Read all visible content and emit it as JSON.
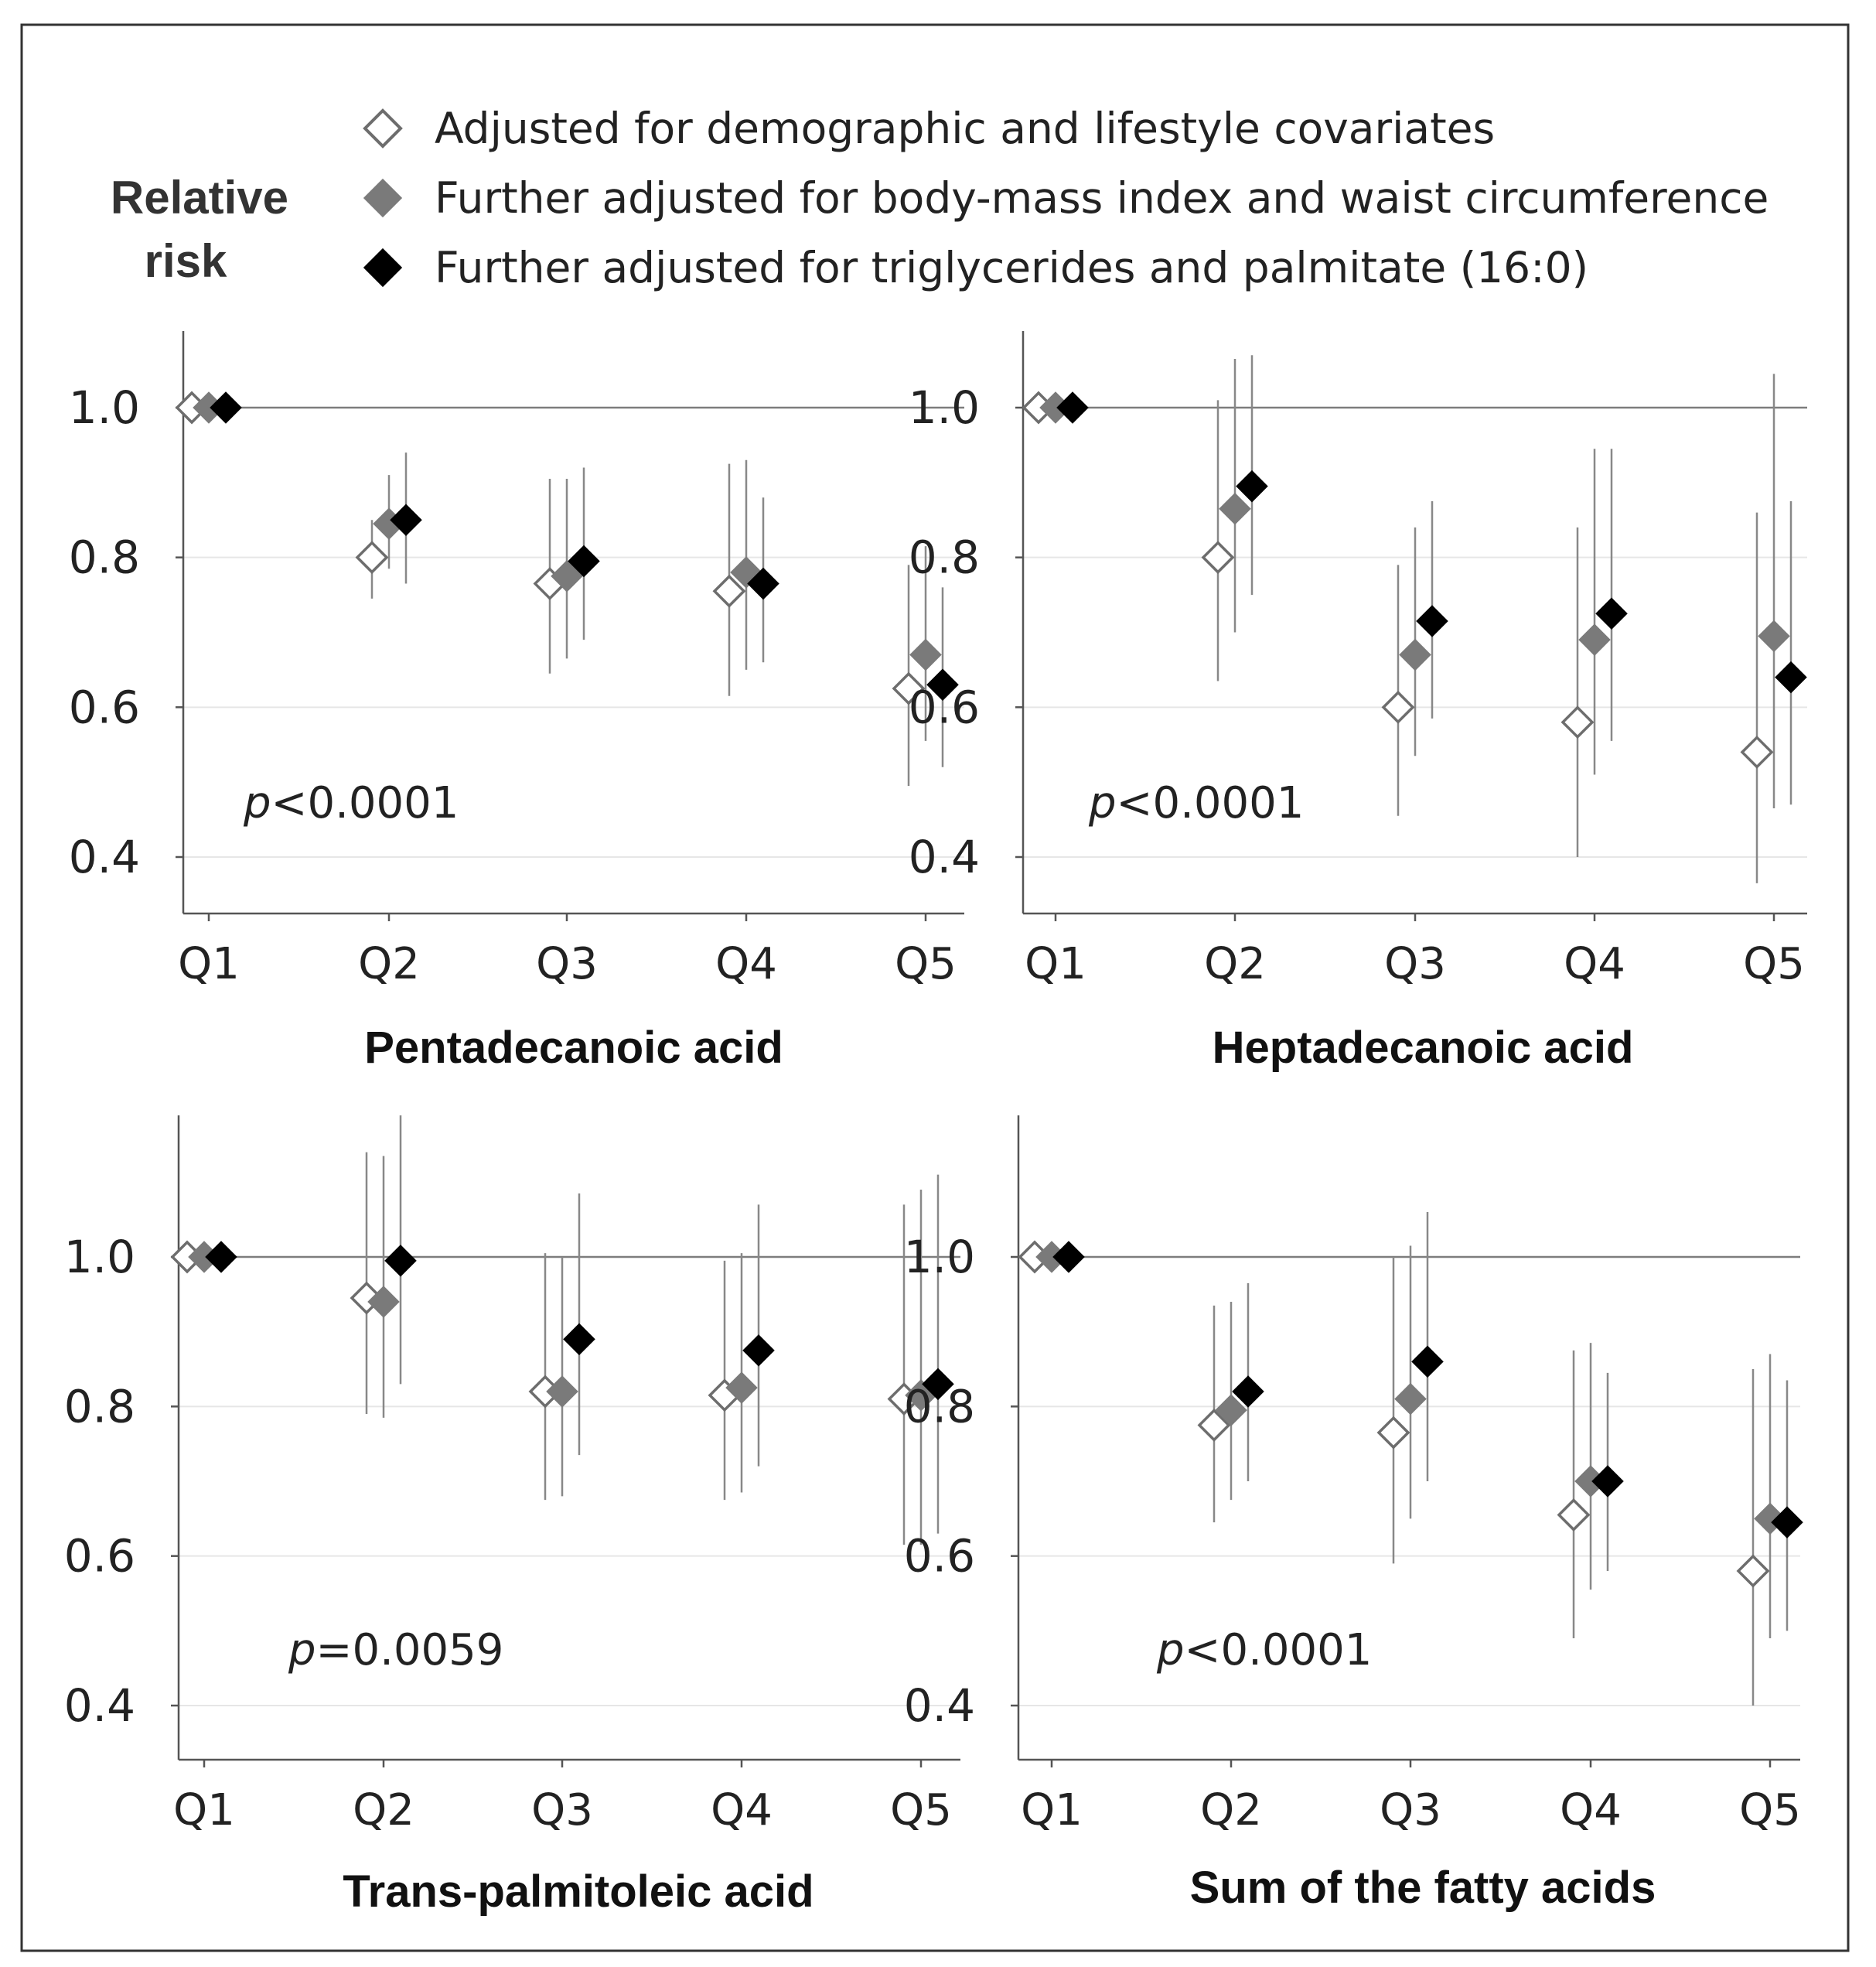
{
  "chart_data": {
    "type": "scatter",
    "ylabel": [
      "Relative",
      "risk"
    ],
    "legend": [
      {
        "name": "Adjusted for demographic and lifestyle covariates",
        "marker": "diamond-open",
        "color": "#ffffff",
        "stroke": "#6d6d6d"
      },
      {
        "name": "Further adjusted for body-mass index and waist circumference",
        "marker": "diamond-filled",
        "color": "#7a7a7a",
        "stroke": "#7a7a7a"
      },
      {
        "name": "Further adjusted for triglycerides and palmitate (16:0)",
        "marker": "diamond-filled",
        "color": "#000000",
        "stroke": "#000000"
      }
    ],
    "categories": [
      "Q1",
      "Q2",
      "Q3",
      "Q4",
      "Q5"
    ],
    "yticks": [
      "1.0",
      "0.8",
      "0.6",
      "0.4"
    ],
    "reference_line": 1.0,
    "panels": [
      {
        "title": "Pentadecanoic acid",
        "p_prefix": "p",
        "p_rest": "<0.0001",
        "series": [
          {
            "name": "Adjusted for demographic and lifestyle covariates",
            "values": [
              1.0,
              0.8,
              0.765,
              0.755,
              0.625
            ],
            "lower": [
              null,
              0.745,
              0.645,
              0.615,
              0.495
            ],
            "upper": [
              null,
              0.85,
              0.905,
              0.925,
              0.79
            ]
          },
          {
            "name": "Further adjusted for body-mass index and waist circumference",
            "values": [
              1.0,
              0.845,
              0.775,
              0.78,
              0.67
            ],
            "lower": [
              null,
              0.785,
              0.665,
              0.65,
              0.555
            ],
            "upper": [
              null,
              0.91,
              0.905,
              0.93,
              0.815
            ]
          },
          {
            "name": "Further adjusted for triglycerides and palmitate (16:0)",
            "values": [
              1.0,
              0.85,
              0.795,
              0.765,
              0.63
            ],
            "lower": [
              null,
              0.765,
              0.69,
              0.66,
              0.52
            ],
            "upper": [
              null,
              0.94,
              0.92,
              0.88,
              0.76
            ]
          }
        ]
      },
      {
        "title": "Heptadecanoic acid",
        "p_prefix": "p",
        "p_rest": "<0.0001",
        "series": [
          {
            "name": "Adjusted for demographic and lifestyle covariates",
            "values": [
              1.0,
              0.8,
              0.6,
              0.58,
              0.54
            ],
            "lower": [
              null,
              0.635,
              0.455,
              0.4,
              0.365
            ],
            "upper": [
              null,
              1.01,
              0.79,
              0.84,
              0.86
            ]
          },
          {
            "name": "Further adjusted for body-mass index and waist circumference",
            "values": [
              1.0,
              0.865,
              0.67,
              0.69,
              0.695
            ],
            "lower": [
              null,
              0.7,
              0.535,
              0.51,
              0.465
            ],
            "upper": [
              null,
              1.065,
              0.84,
              0.945,
              1.045
            ]
          },
          {
            "name": "Further adjusted for triglycerides and palmitate (16:0)",
            "values": [
              1.0,
              0.895,
              0.715,
              0.725,
              0.64
            ],
            "lower": [
              null,
              0.75,
              0.585,
              0.555,
              0.47
            ],
            "upper": [
              null,
              1.07,
              0.875,
              0.945,
              0.875
            ]
          }
        ]
      },
      {
        "title": "Trans-palmitoleic acid",
        "p_prefix": "p",
        "p_rest": "=0.0059",
        "series": [
          {
            "name": "Adjusted for demographic and lifestyle covariates",
            "values": [
              1.0,
              0.945,
              0.82,
              0.815,
              0.81
            ],
            "lower": [
              null,
              0.79,
              0.675,
              0.675,
              0.615
            ],
            "upper": [
              null,
              1.14,
              1.005,
              0.995,
              1.07
            ]
          },
          {
            "name": "Further adjusted for body-mass index and waist circumference",
            "values": [
              1.0,
              0.94,
              0.82,
              0.825,
              0.815
            ],
            "lower": [
              null,
              0.785,
              0.68,
              0.685,
              0.615
            ],
            "upper": [
              null,
              1.135,
              1.0,
              1.005,
              1.09
            ]
          },
          {
            "name": "Further adjusted for triglycerides and palmitate (16:0)",
            "values": [
              1.0,
              0.995,
              0.89,
              0.875,
              0.83
            ],
            "lower": [
              null,
              0.83,
              0.735,
              0.72,
              0.63
            ],
            "upper": [
              null,
              1.19,
              1.085,
              1.07,
              1.11
            ]
          }
        ]
      },
      {
        "title": "Sum of the fatty acids",
        "p_prefix": "p",
        "p_rest": "<0.0001",
        "series": [
          {
            "name": "Adjusted for demographic and lifestyle covariates",
            "values": [
              1.0,
              0.775,
              0.765,
              0.655,
              0.58
            ],
            "lower": [
              null,
              0.645,
              0.59,
              0.49,
              0.4
            ],
            "upper": [
              null,
              0.935,
              1.0,
              0.875,
              0.85
            ]
          },
          {
            "name": "Further adjusted for body-mass index and waist circumference",
            "values": [
              1.0,
              0.795,
              0.81,
              0.7,
              0.65
            ],
            "lower": [
              null,
              0.675,
              0.65,
              0.555,
              0.49
            ],
            "upper": [
              null,
              0.94,
              1.015,
              0.885,
              0.87
            ]
          },
          {
            "name": "Further adjusted for triglycerides and palmitate (16:0)",
            "values": [
              1.0,
              0.82,
              0.86,
              0.7,
              0.645
            ],
            "lower": [
              null,
              0.7,
              0.7,
              0.58,
              0.5
            ],
            "upper": [
              null,
              0.965,
              1.06,
              0.845,
              0.835
            ]
          }
        ]
      }
    ]
  }
}
